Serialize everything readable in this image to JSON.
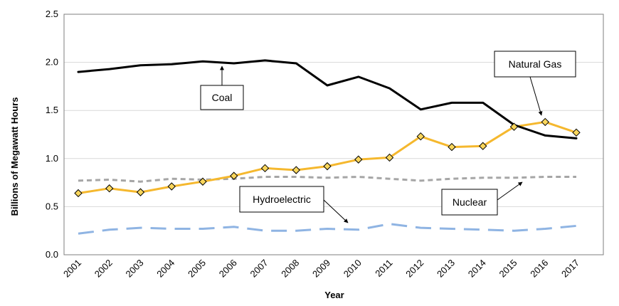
{
  "chart_data": {
    "type": "line",
    "title": "",
    "xlabel": "Year",
    "ylabel": "Billions of Megawatt Hours",
    "ylim": [
      0,
      2.5
    ],
    "yticks": [
      "0.0",
      "0.5",
      "1.0",
      "1.5",
      "2.0",
      "2.5"
    ],
    "categories": [
      "2001",
      "2002",
      "2003",
      "2004",
      "2005",
      "2006",
      "2007",
      "2008",
      "2009",
      "2010",
      "2011",
      "2012",
      "2013",
      "2014",
      "2015",
      "2016",
      "2017"
    ],
    "series": [
      {
        "name": "Coal",
        "color": "#000000",
        "style": "solid",
        "values": [
          1.9,
          1.93,
          1.97,
          1.98,
          2.01,
          1.99,
          2.02,
          1.99,
          1.76,
          1.85,
          1.73,
          1.51,
          1.58,
          1.58,
          1.35,
          1.24,
          1.21
        ]
      },
      {
        "name": "Natural Gas",
        "color": "#F5B82E",
        "style": "solid",
        "marker": "diamond",
        "marker_color": "#F9D65C",
        "values": [
          0.64,
          0.69,
          0.65,
          0.71,
          0.76,
          0.82,
          0.9,
          0.88,
          0.92,
          0.99,
          1.01,
          1.23,
          1.12,
          1.13,
          1.33,
          1.38,
          1.27
        ]
      },
      {
        "name": "Nuclear",
        "color": "#A6A6A6",
        "style": "dashed",
        "values": [
          0.77,
          0.78,
          0.76,
          0.79,
          0.78,
          0.79,
          0.81,
          0.81,
          0.8,
          0.81,
          0.79,
          0.77,
          0.79,
          0.8,
          0.8,
          0.81,
          0.81
        ]
      },
      {
        "name": "Hydroelectric",
        "color": "#8FB4E3",
        "style": "longdash",
        "values": [
          0.22,
          0.26,
          0.28,
          0.27,
          0.27,
          0.29,
          0.25,
          0.25,
          0.27,
          0.26,
          0.32,
          0.28,
          0.27,
          0.26,
          0.25,
          0.27,
          0.3
        ]
      }
    ],
    "annotations": [
      {
        "label": "Coal",
        "series": "Coal"
      },
      {
        "label": "Natural Gas",
        "series": "Natural Gas"
      },
      {
        "label": "Hydroelectric",
        "series": "Hydroelectric"
      },
      {
        "label": "Nuclear",
        "series": "Nuclear"
      }
    ]
  }
}
